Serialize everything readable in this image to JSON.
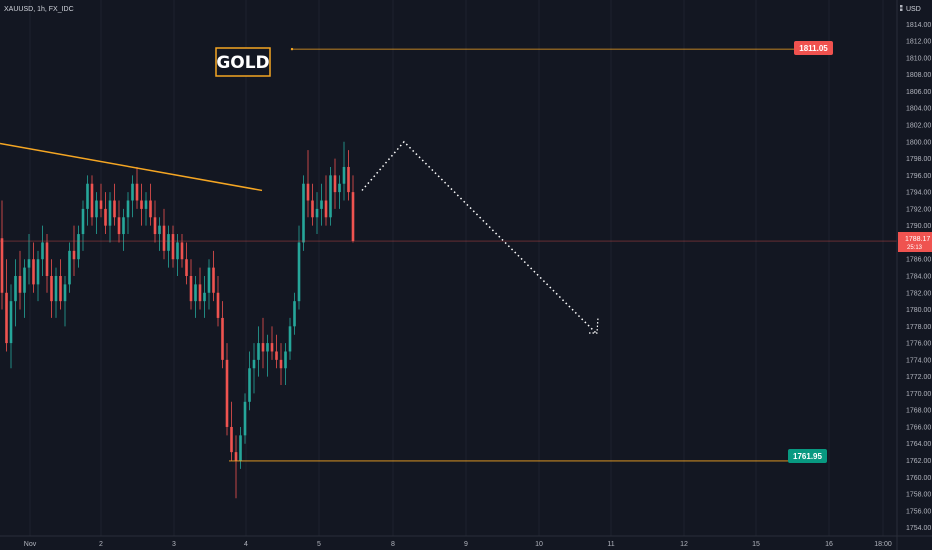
{
  "header": {
    "symbol": "XAUUSD",
    "timeframe": "1h",
    "source": "FX_IDC",
    "currency": "USD",
    "currency_icon": "grid-icon"
  },
  "annotations": {
    "gold_label": "GOLD",
    "resistance_price": "1811.05",
    "support_price": "1761.95",
    "current_price": "1788.17",
    "countdown": "25:13"
  },
  "colors": {
    "background": "#131722",
    "up": "#26a69a",
    "down": "#ef5350",
    "trendline": "#f5a623",
    "resistance_badge": "#f0524f",
    "support_badge": "#089981",
    "projection": "#ffffff"
  },
  "chart_data": {
    "type": "candlestick",
    "y_axis": {
      "range": [
        1753,
        1816
      ],
      "ticks": [
        "1814.00",
        "1812.00",
        "1810.00",
        "1808.00",
        "1806.00",
        "1804.00",
        "1802.00",
        "1800.00",
        "1798.00",
        "1796.00",
        "1794.00",
        "1792.00",
        "1790.00",
        "1788.00",
        "1786.00",
        "1784.00",
        "1782.00",
        "1780.00",
        "1778.00",
        "1776.00",
        "1774.00",
        "1772.00",
        "1770.00",
        "1768.00",
        "1766.00",
        "1764.00",
        "1762.00",
        "1760.00",
        "1758.00",
        "1756.00",
        "1754.00"
      ]
    },
    "x_axis": {
      "ticks": [
        "Nov",
        "2",
        "3",
        "4",
        "5",
        "8",
        "9",
        "10",
        "11",
        "12",
        "15",
        "16",
        "18:00"
      ]
    },
    "levels": [
      {
        "name": "resistance",
        "value": 1811.05
      },
      {
        "name": "support",
        "value": 1761.95
      },
      {
        "name": "last",
        "value": 1788.17
      }
    ],
    "trendline": [
      [
        0,
        1799.8
      ],
      [
        100,
        1794.2
      ]
    ],
    "projection": [
      [
        0,
        1794.2
      ],
      [
        1,
        1800.0
      ],
      [
        2,
        1777.2
      ]
    ],
    "candles": [
      [
        1788.5,
        1793,
        1780,
        1782
      ],
      [
        1782,
        1786,
        1775,
        1776
      ],
      [
        1776,
        1783,
        1773,
        1781
      ],
      [
        1781,
        1786,
        1778,
        1784
      ],
      [
        1784,
        1787,
        1780,
        1782
      ],
      [
        1782,
        1786,
        1779,
        1785
      ],
      [
        1785,
        1789,
        1783,
        1786
      ],
      [
        1786,
        1788,
        1782,
        1783
      ],
      [
        1783,
        1787,
        1781,
        1786
      ],
      [
        1786,
        1790,
        1784,
        1788
      ],
      [
        1788,
        1789,
        1782,
        1784
      ],
      [
        1784,
        1786,
        1779,
        1781
      ],
      [
        1781,
        1785,
        1779,
        1784
      ],
      [
        1784,
        1786,
        1780,
        1781
      ],
      [
        1781,
        1784,
        1778,
        1783
      ],
      [
        1783,
        1788,
        1782,
        1787
      ],
      [
        1787,
        1790,
        1784,
        1786
      ],
      [
        1786,
        1790,
        1785,
        1789
      ],
      [
        1789,
        1793,
        1787,
        1792
      ],
      [
        1792,
        1796,
        1790,
        1795
      ],
      [
        1795,
        1796,
        1790,
        1791
      ],
      [
        1791,
        1794,
        1789,
        1793
      ],
      [
        1793,
        1795,
        1791,
        1792
      ],
      [
        1792,
        1794,
        1789,
        1790
      ],
      [
        1790,
        1794,
        1788,
        1793
      ],
      [
        1793,
        1795,
        1790,
        1791
      ],
      [
        1791,
        1793,
        1788,
        1789
      ],
      [
        1789,
        1792,
        1787,
        1791
      ],
      [
        1791,
        1794,
        1789,
        1793
      ],
      [
        1793,
        1796,
        1791,
        1795
      ],
      [
        1795,
        1797,
        1792,
        1793
      ],
      [
        1793,
        1795,
        1790,
        1792
      ],
      [
        1792,
        1794,
        1790,
        1793
      ],
      [
        1793,
        1795,
        1790,
        1791
      ],
      [
        1791,
        1793,
        1788,
        1789
      ],
      [
        1789,
        1791,
        1787,
        1790
      ],
      [
        1790,
        1792,
        1786,
        1787
      ],
      [
        1787,
        1790,
        1785,
        1789
      ],
      [
        1789,
        1790,
        1785,
        1786
      ],
      [
        1786,
        1789,
        1784,
        1788
      ],
      [
        1788,
        1789,
        1785,
        1786
      ],
      [
        1786,
        1788,
        1783,
        1784
      ],
      [
        1784,
        1786,
        1780,
        1781
      ],
      [
        1781,
        1784,
        1779,
        1783
      ],
      [
        1783,
        1785,
        1780,
        1781
      ],
      [
        1781,
        1784,
        1779,
        1782
      ],
      [
        1782,
        1786,
        1780,
        1785
      ],
      [
        1785,
        1787,
        1781,
        1782
      ],
      [
        1782,
        1784,
        1778,
        1779
      ],
      [
        1779,
        1781,
        1773,
        1774
      ],
      [
        1774,
        1776,
        1765,
        1766
      ],
      [
        1766,
        1769,
        1762,
        1763
      ],
      [
        1763,
        1765,
        1757.5,
        1762
      ],
      [
        1762,
        1766,
        1761,
        1765
      ],
      [
        1765,
        1770,
        1764,
        1769
      ],
      [
        1769,
        1775,
        1768,
        1773
      ],
      [
        1773,
        1776,
        1770,
        1774
      ],
      [
        1774,
        1778,
        1772,
        1776
      ],
      [
        1776,
        1779,
        1773,
        1775
      ],
      [
        1775,
        1777,
        1772,
        1776
      ],
      [
        1776,
        1778,
        1774,
        1775
      ],
      [
        1775,
        1777,
        1773,
        1774
      ],
      [
        1774,
        1776,
        1771,
        1773
      ],
      [
        1773,
        1776,
        1771,
        1775
      ],
      [
        1775,
        1779,
        1774,
        1778
      ],
      [
        1778,
        1782,
        1777,
        1781
      ],
      [
        1781,
        1790,
        1780,
        1788
      ],
      [
        1788,
        1796,
        1787,
        1795
      ],
      [
        1795,
        1799,
        1791,
        1793
      ],
      [
        1793,
        1795,
        1790,
        1791
      ],
      [
        1791,
        1794,
        1789,
        1792
      ],
      [
        1792,
        1795,
        1790,
        1793
      ],
      [
        1793,
        1796,
        1790,
        1791
      ],
      [
        1791,
        1797,
        1790,
        1796
      ],
      [
        1796,
        1798,
        1792,
        1794
      ],
      [
        1794,
        1796,
        1792,
        1795
      ],
      [
        1795,
        1800,
        1793,
        1797
      ],
      [
        1797,
        1799,
        1793,
        1794
      ],
      [
        1794,
        1796,
        1788,
        1788.17
      ]
    ]
  }
}
